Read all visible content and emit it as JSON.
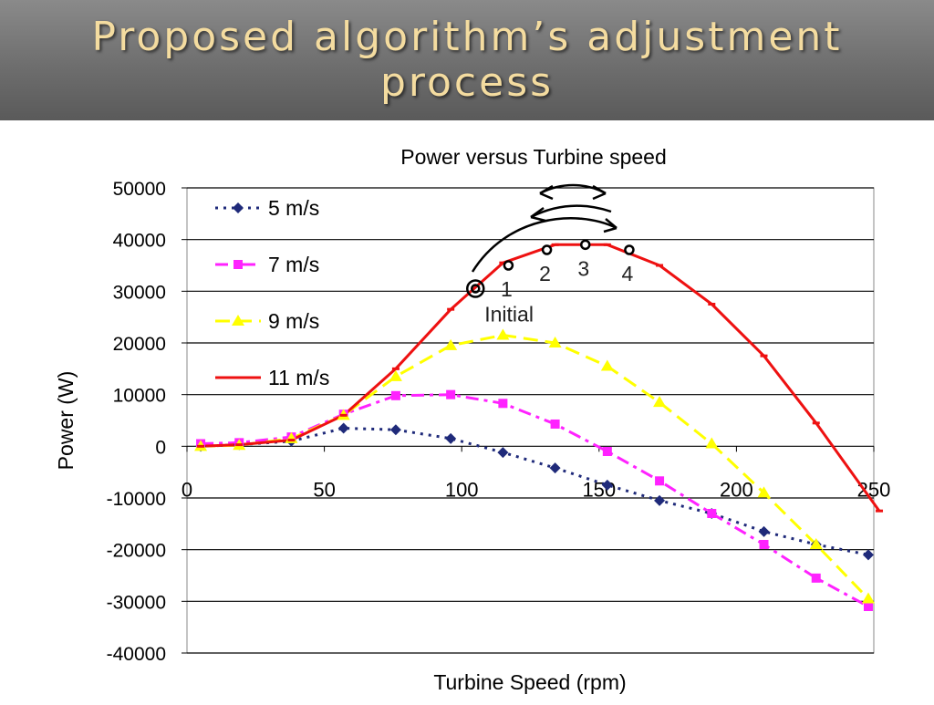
{
  "slide": {
    "title": "Proposed algorithm’s adjustment process"
  },
  "chart_data": {
    "type": "line",
    "title": "Power versus Turbine speed",
    "xlabel": "Turbine Speed (rpm)",
    "ylabel": "Power (W)",
    "xlim": [
      0,
      250
    ],
    "ylim": [
      -40000,
      50000
    ],
    "xticks": [
      "0",
      "50",
      "100",
      "150",
      "200",
      "250"
    ],
    "yticks": [
      "-40000",
      "-30000",
      "-20000",
      "-10000",
      "0",
      "10000",
      "20000",
      "30000",
      "40000",
      "50000"
    ],
    "grid": "horizontal",
    "legend_position": "top-left",
    "series": [
      {
        "name": "5 m/s",
        "color": "#1f2a7a",
        "marker": "diamond",
        "dash": "dot",
        "x": [
          5,
          19,
          38,
          57,
          76,
          96,
          115,
          134,
          153,
          172,
          191,
          210,
          229,
          248
        ],
        "y": [
          0,
          300,
          1000,
          3500,
          3200,
          1500,
          -1200,
          -4200,
          -7500,
          -10500,
          -13000,
          -16500,
          -19000,
          -21000
        ]
      },
      {
        "name": "7 m/s",
        "color": "#ff22ff",
        "marker": "square",
        "dash": "dashdot",
        "x": [
          5,
          19,
          38,
          57,
          76,
          96,
          115,
          134,
          153,
          172,
          191,
          210,
          229,
          248
        ],
        "y": [
          500,
          700,
          1800,
          6200,
          9800,
          10000,
          8300,
          4300,
          -1000,
          -6700,
          -13000,
          -19000,
          -25500,
          -31000
        ]
      },
      {
        "name": "9 m/s",
        "color": "#ffff00",
        "marker": "triangle",
        "dash": "longdash",
        "x": [
          5,
          19,
          38,
          57,
          76,
          96,
          115,
          134,
          153,
          172,
          191,
          210,
          229,
          248
        ],
        "y": [
          0,
          200,
          1500,
          6000,
          13500,
          19500,
          21500,
          20000,
          15500,
          8500,
          500,
          -9000,
          -19000,
          -29500
        ]
      },
      {
        "name": "11 m/s",
        "color": "#ee1111",
        "marker": "dash",
        "dash": "solid",
        "x": [
          5,
          19,
          38,
          57,
          76,
          96,
          115,
          134,
          153,
          172,
          191,
          210,
          229,
          252
        ],
        "y": [
          0,
          300,
          1200,
          6000,
          15000,
          26500,
          35500,
          39000,
          39000,
          35000,
          27500,
          17500,
          4500,
          -12500
        ]
      }
    ],
    "annotations": [
      {
        "label": "Initial",
        "x": 105,
        "y": 30500
      },
      {
        "label": "1",
        "x": 117,
        "y": 35000
      },
      {
        "label": "2",
        "x": 131,
        "y": 38000
      },
      {
        "label": "3",
        "x": 145,
        "y": 39000
      },
      {
        "label": "4",
        "x": 161,
        "y": 38000
      }
    ]
  }
}
